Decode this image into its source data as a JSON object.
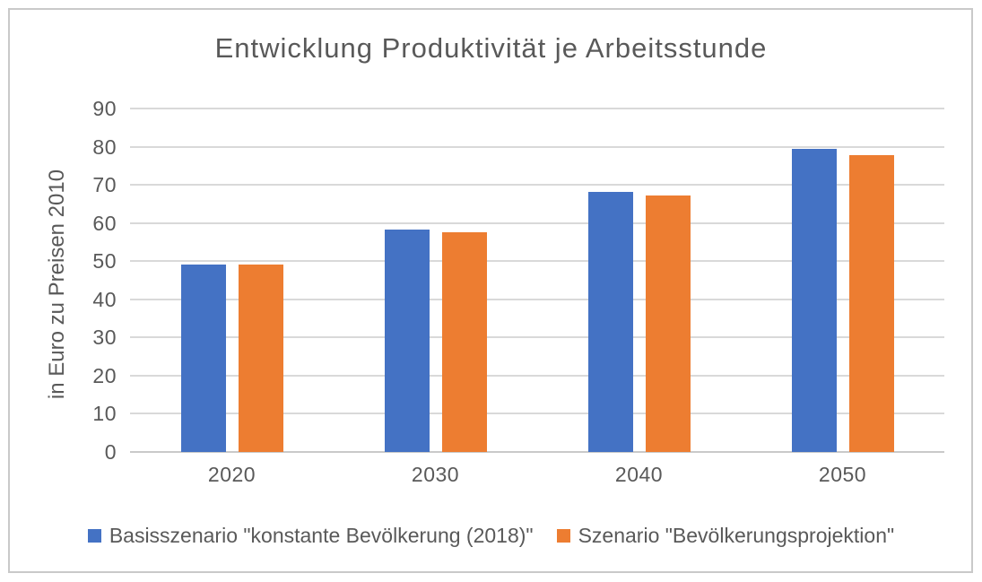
{
  "chart_data": {
    "type": "bar",
    "title": "Entwicklung Produktivität je Arbeitsstunde",
    "ylabel": "in Euro zu Preisen 2010",
    "xlabel": "",
    "categories": [
      "2020",
      "2030",
      "2040",
      "2050"
    ],
    "series": [
      {
        "name": "Basisszenario \"konstante Bevölkerung (2018)\"",
        "color": "#4472C4",
        "values": [
          49.2,
          58.3,
          68.2,
          79.5
        ]
      },
      {
        "name": "Szenario \"Bevölkerungsprojektion\"",
        "color": "#ED7D31",
        "values": [
          49.1,
          57.6,
          67.3,
          77.7
        ]
      }
    ],
    "ylim": [
      0,
      90
    ],
    "yticks": [
      0,
      10,
      20,
      30,
      40,
      50,
      60,
      70,
      80,
      90
    ],
    "grid": "horizontal",
    "legend_position": "bottom"
  },
  "colors": {
    "bar_blue": "#4472C4",
    "bar_orange": "#ED7D31",
    "title_text": "#595959",
    "axis_text": "#595959",
    "gridline": "#D9D9D9",
    "axis_line": "#C9C9C9",
    "frame_border": "#C9C9C9",
    "background": "#FFFFFF"
  }
}
